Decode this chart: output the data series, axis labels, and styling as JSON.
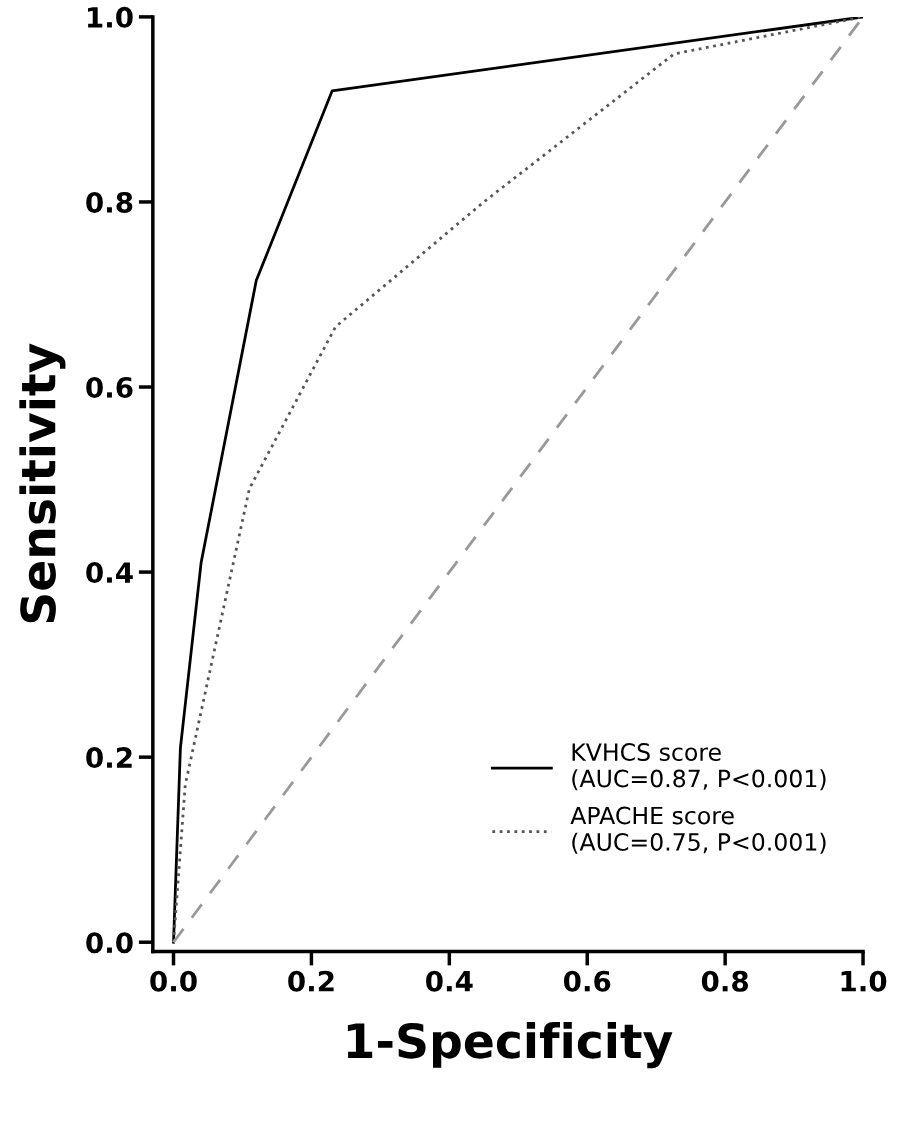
{
  "chart_data": {
    "type": "line",
    "xlabel": "1-Specificity",
    "ylabel": "Sensitivity",
    "xlim": [
      -0.03,
      1.0
    ],
    "ylim": [
      -0.01,
      1.0
    ],
    "xticks": [
      {
        "value": 0,
        "label": "0.0"
      },
      0.2,
      0.4,
      0.6,
      0.8,
      {
        "value": 1,
        "label": "1.0"
      }
    ],
    "yticks": [
      {
        "value": 0,
        "label": "0.0"
      },
      0.2,
      0.4,
      0.6,
      0.8,
      {
        "value": 1,
        "label": "1.0"
      }
    ],
    "grid": false,
    "legend": "bottom right",
    "marker": "none",
    "series": [
      {
        "name": "KVHCS score\n(AUC=0.87, P<0.001)",
        "color": "#000000",
        "line_style": "solid",
        "x": [
          0,
          0.01,
          0.04,
          0.12,
          0.23,
          1.0
        ],
        "values": [
          0,
          0.21,
          0.41,
          0.715,
          0.92,
          1.0
        ]
      },
      {
        "name": "APACHE score\n(AUC=0.75, P<0.001)",
        "color": "#555555",
        "line_style": "dotted",
        "x": [
          0,
          0.017,
          0.11,
          0.235,
          0.45,
          0.726,
          1.0
        ],
        "values": [
          0,
          0.17,
          0.49,
          0.665,
          0.8,
          0.96,
          1.0
        ]
      },
      {
        "color": "#999999",
        "line_style": "dashed",
        "x": [
          0,
          1.0
        ],
        "values": [
          0,
          1.0
        ]
      }
    ]
  }
}
